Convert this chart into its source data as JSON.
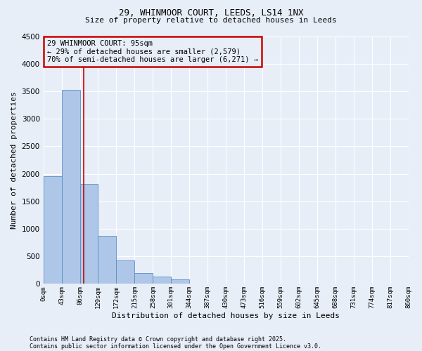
{
  "title1": "29, WHINMOOR COURT, LEEDS, LS14 1NX",
  "title2": "Size of property relative to detached houses in Leeds",
  "xlabel": "Distribution of detached houses by size in Leeds",
  "ylabel": "Number of detached properties",
  "footnote1": "Contains HM Land Registry data © Crown copyright and database right 2025.",
  "footnote2": "Contains public sector information licensed under the Open Government Licence v3.0.",
  "annotation_line1": "29 WHINMOOR COURT: 95sqm",
  "annotation_line2": "← 29% of detached houses are smaller (2,579)",
  "annotation_line3": "70% of semi-detached houses are larger (6,271) →",
  "vline_x": 95,
  "bin_edges": [
    0,
    43,
    86,
    129,
    172,
    215,
    258,
    301,
    344,
    387,
    430,
    473,
    516,
    559,
    602,
    645,
    688,
    731,
    774,
    817,
    860
  ],
  "bar_heights": [
    1950,
    3520,
    1820,
    870,
    430,
    200,
    130,
    80,
    0,
    0,
    0,
    0,
    0,
    0,
    0,
    0,
    0,
    0,
    0,
    0
  ],
  "bar_color": "#aec6e8",
  "bar_edge_color": "#5a8fc0",
  "vline_color": "#cc0000",
  "annotation_box_color": "#cc0000",
  "background_color": "#e8eef8",
  "grid_color": "#ffffff",
  "ylim": [
    0,
    4500
  ],
  "yticks": [
    0,
    500,
    1000,
    1500,
    2000,
    2500,
    3000,
    3500,
    4000,
    4500
  ]
}
